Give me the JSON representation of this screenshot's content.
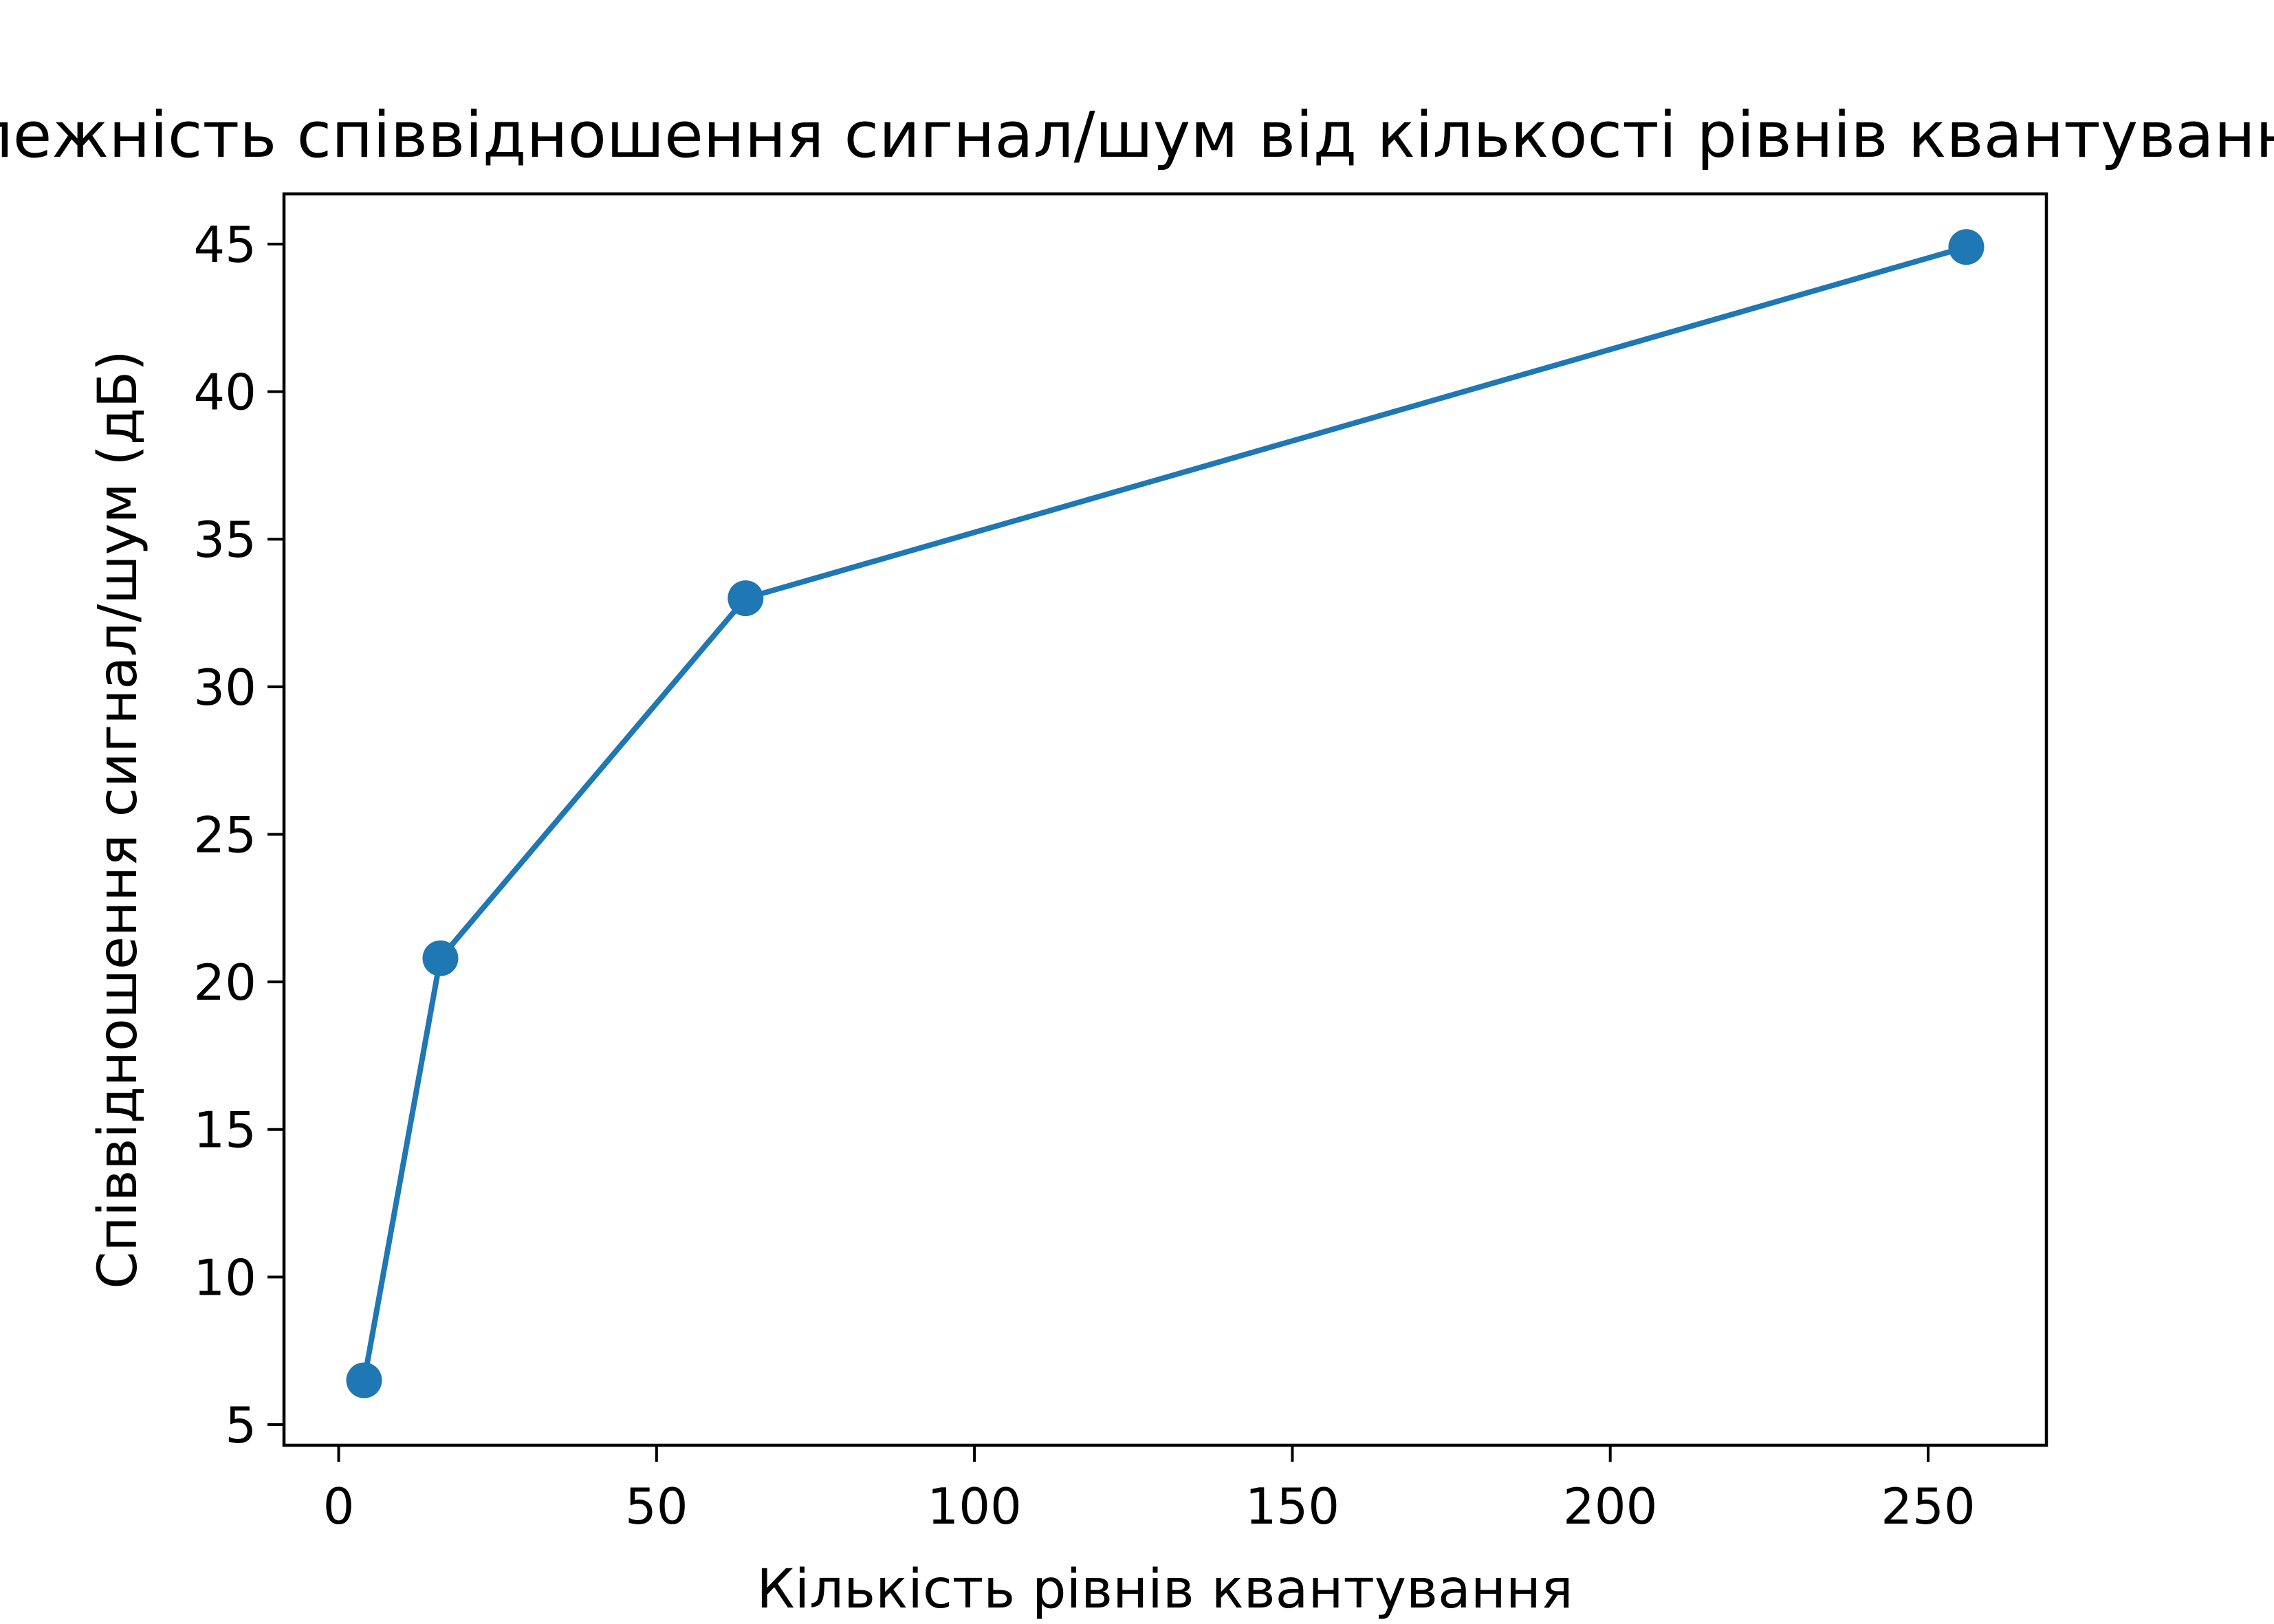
{
  "chart_data": {
    "type": "line",
    "title": "Залежність співвідношення сигнал/шум від кількості рівнів квантування",
    "xlabel": "Кількість рівнів квантування",
    "ylabel": "Співвідношення сигнал/шум (дБ)",
    "x": [
      4,
      16,
      64,
      256
    ],
    "series": [
      {
        "values": [
          6.5,
          20.8,
          33.0,
          44.9
        ]
      }
    ],
    "xlim": [
      -8.6,
      268.6
    ],
    "ylim": [
      4.3,
      46.7
    ],
    "xticks": [
      0,
      50,
      100,
      150,
      200,
      250
    ],
    "yticks": [
      5,
      10,
      15,
      20,
      25,
      30,
      35,
      40,
      45
    ],
    "marker": "circle",
    "grid": false,
    "legend": "none",
    "colors": {
      "series": "#1f77b4",
      "axes": "#000000"
    }
  }
}
